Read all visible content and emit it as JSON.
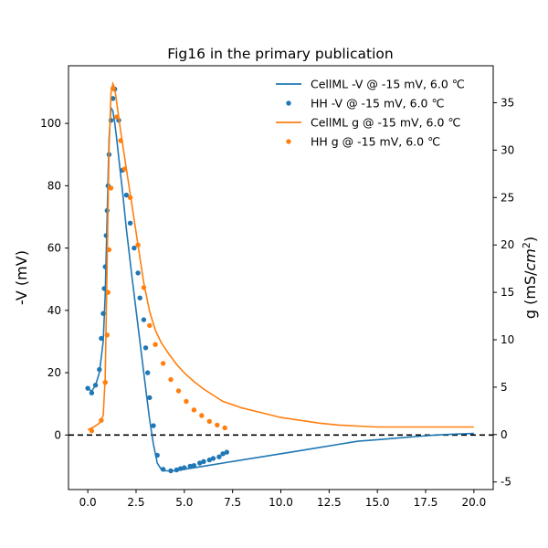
{
  "chart_data": {
    "type": "line",
    "title": "Fig16 in the primary publication",
    "xlabel": "",
    "ylabel_left": "-V (mV)",
    "ylabel_right_prefix": "g (mS/",
    "ylabel_right_italic": "cm",
    "ylabel_right_sup": "2",
    "ylabel_right_suffix": ")",
    "xlim": [
      -1.0,
      21.0
    ],
    "ylim_left": [
      -17.5,
      118.5
    ],
    "ylim_right": [
      -5.8,
      38.9
    ],
    "xticks": [
      "0.0",
      "2.5",
      "5.0",
      "7.5",
      "10.0",
      "12.5",
      "15.0",
      "17.5",
      "20.0"
    ],
    "yticks_left": [
      "0",
      "20",
      "40",
      "60",
      "80",
      "100"
    ],
    "yticks_right": [
      "-5",
      "0",
      "5",
      "10",
      "15",
      "20",
      "25",
      "30",
      "35"
    ],
    "zero_line": {
      "y": 0,
      "style": "dashed",
      "color": "#000000"
    },
    "grid": false,
    "legend_position": "top-right",
    "series": [
      {
        "name": "CellML -V @ -15 mV, 6.0 ℃",
        "kind": "line",
        "axis": "left",
        "color": "#1f77b4",
        "x": [
          0,
          0.2,
          0.4,
          0.6,
          0.8,
          0.9,
          1.0,
          1.1,
          1.2,
          1.3,
          1.4,
          1.5,
          1.6,
          1.8,
          2.0,
          2.3,
          2.6,
          2.9,
          3.2,
          3.4,
          3.6,
          3.8,
          4.0,
          4.5,
          5.0,
          6.0,
          7.0,
          8.0,
          9.0,
          10.0,
          11.0,
          12.0,
          13.0,
          14.0,
          15.0,
          16.0,
          17.0,
          18.0,
          19.0,
          20.0
        ],
        "y": [
          15,
          14,
          16,
          20,
          30,
          45,
          70,
          95,
          105,
          104,
          100,
          95,
          89,
          78,
          66,
          50,
          35,
          20,
          5,
          -3,
          -9,
          -11,
          -11.5,
          -11.5,
          -11,
          -10,
          -9,
          -8,
          -7,
          -6,
          -5,
          -4,
          -3,
          -2,
          -1.5,
          -1,
          -0.5,
          0,
          0.3,
          0.5
        ]
      },
      {
        "name": "HH  -V @ -15 mV, 6.0 ℃",
        "kind": "scatter",
        "axis": "left",
        "color": "#1f77b4",
        "x": [
          0.0,
          0.2,
          0.4,
          0.6,
          0.7,
          0.8,
          0.85,
          0.9,
          0.95,
          1.0,
          1.05,
          1.1,
          1.2,
          1.3,
          1.4,
          1.6,
          1.8,
          2.0,
          2.2,
          2.4,
          2.6,
          2.7,
          2.9,
          3.0,
          3.1,
          3.2,
          3.4,
          3.6,
          3.9,
          4.3,
          4.6,
          4.8,
          5.0,
          5.3,
          5.5,
          5.8,
          6.0,
          6.3,
          6.5,
          6.8,
          7.0,
          7.2
        ],
        "y": [
          15,
          13.5,
          16,
          21,
          31,
          39,
          47,
          54,
          64,
          72,
          80,
          90,
          101,
          108,
          111,
          101,
          85,
          77,
          68,
          60,
          52,
          44,
          37,
          28,
          20,
          12,
          3,
          -6.5,
          -11,
          -11.5,
          -11.2,
          -10.8,
          -10.5,
          -10,
          -9.8,
          -9,
          -8.5,
          -8,
          -7.5,
          -7,
          -6,
          -5.5
        ]
      },
      {
        "name": "CellML  g @ -15 mV, 6.0 ℃",
        "kind": "line",
        "axis": "right",
        "color": "#ff7f0e",
        "x": [
          0,
          0.3,
          0.6,
          0.8,
          0.9,
          1.0,
          1.1,
          1.2,
          1.3,
          1.4,
          1.5,
          1.7,
          2.0,
          2.3,
          2.6,
          2.9,
          3.2,
          3.5,
          3.8,
          4.2,
          4.6,
          5.0,
          5.5,
          6.0,
          7.0,
          8.0,
          9.0,
          10.0,
          11.0,
          12.0,
          13.0,
          14.0,
          15.0,
          17.0,
          20.0
        ],
        "y": [
          0.5,
          0.8,
          1.2,
          2,
          6,
          18,
          30,
          36,
          37,
          36.5,
          35,
          32,
          28,
          24,
          20,
          16,
          13,
          11,
          9.7,
          8.5,
          7.4,
          6.5,
          5.6,
          4.8,
          3.5,
          2.8,
          2.3,
          1.8,
          1.5,
          1.2,
          1.0,
          0.9,
          0.8,
          0.8,
          0.8
        ]
      },
      {
        "name": "HH  g @ -15 mV, 6.0 ℃",
        "kind": "scatter",
        "axis": "right",
        "color": "#ff7f0e",
        "x": [
          0.2,
          0.7,
          0.9,
          1.0,
          1.05,
          1.1,
          1.2,
          1.3,
          1.5,
          1.7,
          1.9,
          2.2,
          2.6,
          2.9,
          3.2,
          3.5,
          3.9,
          4.3,
          4.7,
          5.1,
          5.5,
          5.9,
          6.3,
          6.7,
          7.1
        ],
        "y": [
          0.4,
          1.5,
          5.5,
          10.5,
          15,
          19.5,
          26,
          36.5,
          33.5,
          31,
          28,
          25,
          20,
          15.5,
          11.5,
          9.5,
          7.5,
          5.8,
          4.6,
          3.5,
          2.6,
          2.0,
          1.4,
          1.0,
          0.7
        ]
      }
    ]
  }
}
